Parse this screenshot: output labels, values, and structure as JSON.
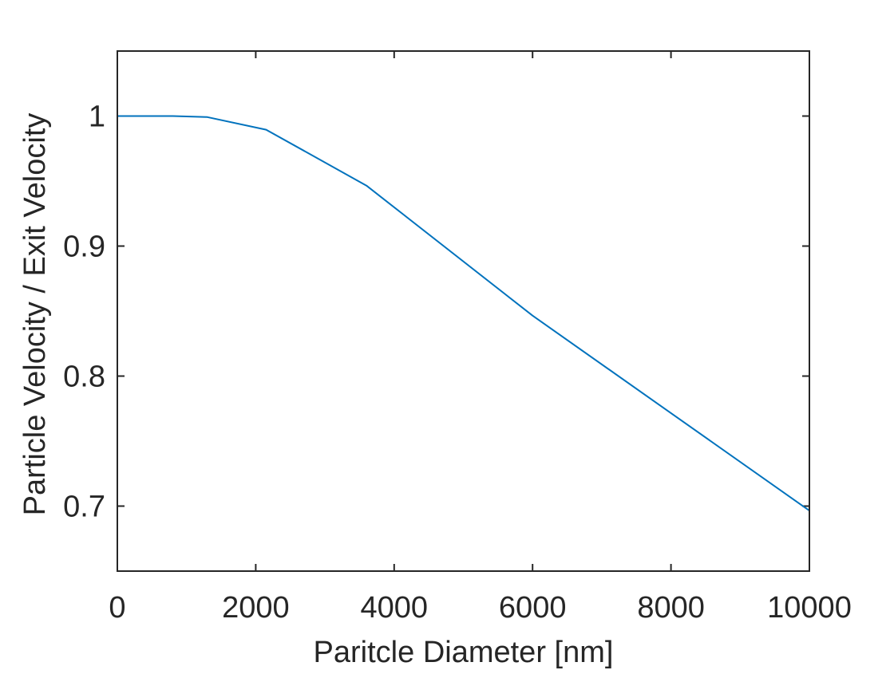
{
  "chart_data": {
    "type": "line",
    "title": "",
    "xlabel": "Paritcle Diameter [nm]",
    "ylabel": "Particle Velocity / Exit Velocity",
    "xlim": [
      0,
      10000
    ],
    "ylim": [
      0.65,
      1.05
    ],
    "xticks": [
      0,
      2000,
      4000,
      6000,
      8000,
      10000
    ],
    "xtick_labels": [
      "0",
      "2000",
      "4000",
      "6000",
      "8000",
      "10000"
    ],
    "yticks": [
      0.7,
      0.8,
      0.9,
      1.0
    ],
    "ytick_labels": [
      "0.7",
      "0.8",
      "0.9",
      "1"
    ],
    "grid": false,
    "box": true,
    "series": [
      {
        "color": "#0072BD",
        "x": [
          0,
          100,
          300,
          800,
          1300,
          2150,
          3600,
          6000,
          10000
        ],
        "y": [
          1.0,
          1.0,
          1.0,
          1.0,
          0.9992,
          0.9895,
          0.9465,
          0.8465,
          0.6965
        ]
      }
    ]
  }
}
